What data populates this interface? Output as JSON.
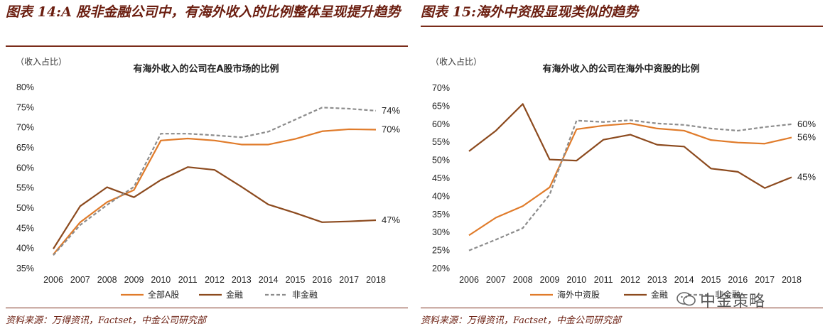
{
  "left": {
    "figure_title": "图表 14:A 股非金融公司中，有海外收入的比例整体呈现提升趋势",
    "unit": "（收入占比）",
    "source": "资料来源：万得资讯，Factset，中金公司研究部"
  },
  "right": {
    "figure_title": "图表 15:海外中资股显现类似的趋势",
    "unit": "（收入占比）",
    "source": "资料来源：万得资讯，Factset，中金公司研究部"
  },
  "watermark": "中金策略",
  "colors": {
    "orange": "#e07b2a",
    "brown": "#8c4a1e",
    "gray": "#8c8c8c",
    "accent": "#6b1e10"
  },
  "chart_data": [
    {
      "type": "line",
      "title": "有海外收入的公司在A股市场的比例",
      "categories": [
        "2006",
        "2007",
        "2008",
        "2009",
        "2010",
        "2011",
        "2012",
        "2013",
        "2014",
        "2015",
        "2016",
        "2017",
        "2018"
      ],
      "ylim": [
        0.35,
        0.8
      ],
      "yticks": [
        0.35,
        0.4,
        0.45,
        0.5,
        0.55,
        0.6,
        0.65,
        0.7,
        0.75,
        0.8
      ],
      "ytick_labels": [
        "35%",
        "40%",
        "45%",
        "50%",
        "55%",
        "60%",
        "65%",
        "70%",
        "75%",
        "80%"
      ],
      "grid": false,
      "legend_position": "bottom",
      "series": [
        {
          "name": "全部A股",
          "color": "orange",
          "dash": false,
          "end_label": "70%",
          "values": [
            0.385,
            0.465,
            0.515,
            0.545,
            0.668,
            0.673,
            0.668,
            0.658,
            0.658,
            0.672,
            0.691,
            0.696,
            0.695
          ]
        },
        {
          "name": "金融",
          "color": "brown",
          "dash": false,
          "end_label": "47%",
          "values": [
            0.399,
            0.505,
            0.552,
            0.527,
            0.57,
            0.602,
            0.595,
            0.553,
            0.509,
            0.488,
            0.465,
            0.467,
            0.47
          ]
        },
        {
          "name": "非金融",
          "color": "gray",
          "dash": true,
          "end_label": "74%",
          "values": [
            0.383,
            0.458,
            0.508,
            0.553,
            0.685,
            0.685,
            0.681,
            0.676,
            0.69,
            0.72,
            0.75,
            0.747,
            0.742
          ]
        }
      ]
    },
    {
      "type": "line",
      "title": "有海外收入的公司在海外中资股的比例",
      "categories": [
        "2006",
        "2007",
        "2008",
        "2009",
        "2010",
        "2011",
        "2012",
        "2013",
        "2014",
        "2015",
        "2016",
        "2017",
        "2018"
      ],
      "ylim": [
        0.2,
        0.7
      ],
      "yticks": [
        0.2,
        0.25,
        0.3,
        0.35,
        0.4,
        0.45,
        0.5,
        0.55,
        0.6,
        0.65,
        0.7
      ],
      "ytick_labels": [
        "20%",
        "25%",
        "30%",
        "35%",
        "40%",
        "45%",
        "50%",
        "55%",
        "60%",
        "65%",
        "70%"
      ],
      "grid": false,
      "legend_position": "bottom",
      "series": [
        {
          "name": "海外中资股",
          "color": "orange",
          "dash": false,
          "end_label": "56%",
          "values": [
            0.292,
            0.341,
            0.373,
            0.425,
            0.586,
            0.596,
            0.602,
            0.588,
            0.582,
            0.556,
            0.549,
            0.546,
            0.563
          ]
        },
        {
          "name": "金融",
          "color": "brown",
          "dash": false,
          "end_label": "45%",
          "values": [
            0.525,
            0.582,
            0.656,
            0.502,
            0.499,
            0.557,
            0.571,
            0.543,
            0.538,
            0.477,
            0.468,
            0.423,
            0.453
          ]
        },
        {
          "name": "非金融",
          "color": "gray",
          "dash": true,
          "end_label": "60%",
          "values": [
            0.25,
            0.28,
            0.312,
            0.405,
            0.61,
            0.606,
            0.611,
            0.602,
            0.598,
            0.588,
            0.582,
            0.592,
            0.6
          ]
        }
      ]
    }
  ]
}
